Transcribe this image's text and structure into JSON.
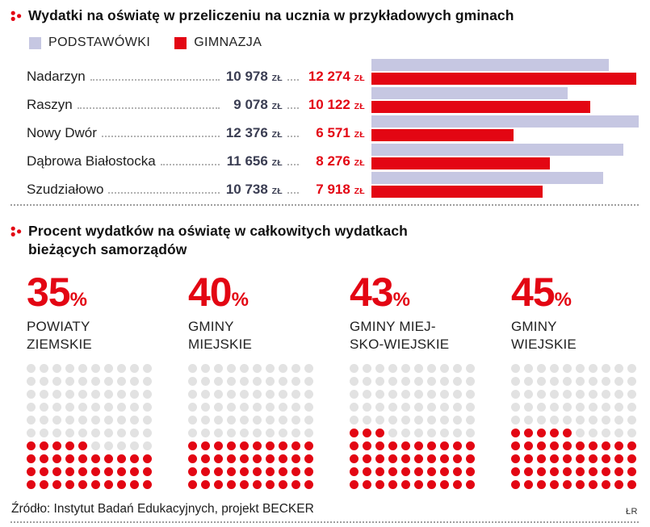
{
  "section1": {
    "title": "Wydatki na oświatę w przeliczeniu na ucznia w przykładowych gminach",
    "legend": [
      {
        "label": "PODSTAWÓWKI",
        "color": "#c6c7e2"
      },
      {
        "label": "GIMNAZJA",
        "color": "#e30613"
      }
    ],
    "currency_suffix": "zł",
    "max_value": 12376,
    "rows": [
      {
        "label": "Nadarzyn",
        "podstawowki": "10 978",
        "gimnazja": "12 274",
        "p_val": 10978,
        "g_val": 12274
      },
      {
        "label": "Raszyn",
        "podstawowki": "9 078",
        "gimnazja": "10 122",
        "p_val": 9078,
        "g_val": 10122
      },
      {
        "label": "Nowy Dwór",
        "podstawowki": "12 376",
        "gimnazja": "6 571",
        "p_val": 12376,
        "g_val": 6571
      },
      {
        "label": "Dąbrowa Białostocka",
        "podstawowki": "11 656",
        "gimnazja": "8 276",
        "p_val": 11656,
        "g_val": 8276
      },
      {
        "label": "Szudziałowo",
        "podstawowki": "10 738",
        "gimnazja": "7 918",
        "p_val": 10738,
        "g_val": 7918
      }
    ]
  },
  "section2": {
    "title_line1": "Procent wydatków na oświatę w całkowitych wydatkach",
    "title_line2": "bieżących samorządów",
    "grid": {
      "cols": 10,
      "rows": 10
    },
    "items": [
      {
        "percent": 35,
        "label_lines": [
          "POWIATY",
          "ZIEMSKIE"
        ]
      },
      {
        "percent": 40,
        "label_lines": [
          "GMINY",
          "MIEJSKIE"
        ]
      },
      {
        "percent": 43,
        "label_lines": [
          "GMINY MIEJ-",
          "SKO-WIEJSKIE"
        ]
      },
      {
        "percent": 45,
        "label_lines": [
          "GMINY",
          "WIEJSKIE"
        ]
      }
    ]
  },
  "footer": {
    "source": "Źródło: Instytut Badań Edukacyjnych, projekt BECKER",
    "credit": "ŁR"
  },
  "colors": {
    "red": "#e30613",
    "lavender": "#c6c7e2",
    "dot_gray": "#e2e2e2"
  },
  "chart_data": [
    {
      "type": "bar",
      "orientation": "horizontal",
      "title": "Wydatki na oświatę w przeliczeniu na ucznia w przykładowych gminach",
      "categories": [
        "Nadarzyn",
        "Raszyn",
        "Nowy Dwór",
        "Dąbrowa Białostocka",
        "Szudziałowo"
      ],
      "series": [
        {
          "name": "PODSTAWÓWKI",
          "color": "#c6c7e2",
          "values": [
            10978,
            9078,
            12376,
            11656,
            10738
          ]
        },
        {
          "name": "GIMNAZJA",
          "color": "#e30613",
          "values": [
            12274,
            10122,
            6571,
            8276,
            7918
          ]
        }
      ],
      "unit": "zł",
      "xlim": [
        0,
        12376
      ],
      "legend_position": "top",
      "grid": false,
      "value_labels": "shown next to category names with dotted leaders"
    },
    {
      "type": "pictogram",
      "title": "Procent wydatków na oświatę w całkowitych wydatkach bieżących samorządów",
      "categories": [
        "POWIATY ZIEMSKIE",
        "GMINY MIEJSKIE",
        "GMINY MIEJSKO-WIEJSKIE",
        "GMINY WIEJSKIE"
      ],
      "values": [
        35,
        40,
        43,
        45
      ],
      "unit": "%",
      "layout": "10x10 dot matrix per category, red dots filled from bottom-left, remainder gray"
    }
  ]
}
